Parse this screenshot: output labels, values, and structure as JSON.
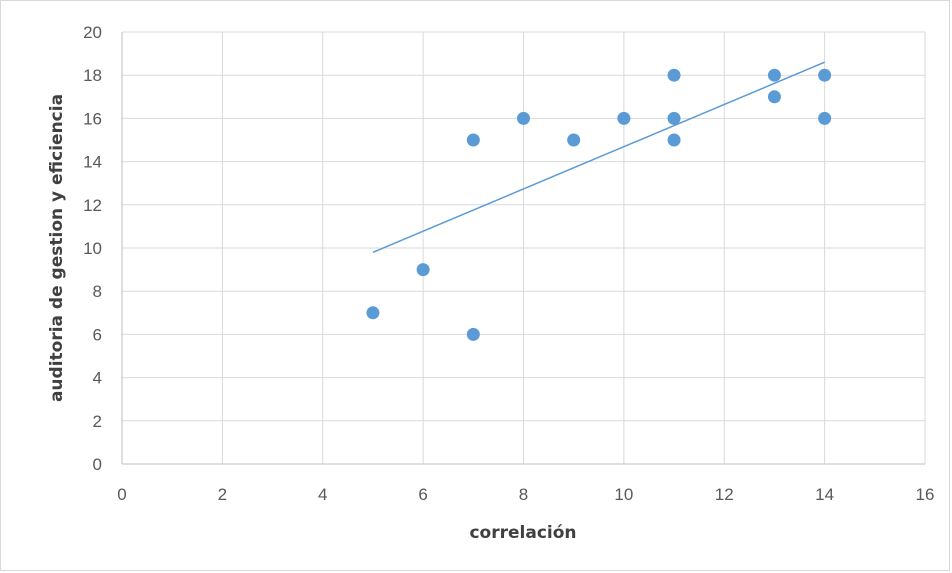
{
  "chart_data": {
    "type": "scatter",
    "title": "",
    "xlabel": "correlación",
    "ylabel": "auditoria de gestion y eficiencia",
    "xlim": [
      0,
      16
    ],
    "ylim": [
      0,
      20
    ],
    "x_ticks": [
      0,
      2,
      4,
      6,
      8,
      10,
      12,
      14,
      16
    ],
    "y_ticks": [
      0,
      2,
      4,
      6,
      8,
      10,
      12,
      14,
      16,
      18,
      20
    ],
    "grid": true,
    "legend": "none",
    "series": [
      {
        "points": [
          [
            5,
            7
          ],
          [
            6,
            9
          ],
          [
            7,
            15
          ],
          [
            7,
            6
          ],
          [
            8,
            16
          ],
          [
            9,
            15
          ],
          [
            10,
            16
          ],
          [
            11,
            18
          ],
          [
            11,
            16
          ],
          [
            11,
            15
          ],
          [
            13,
            18
          ],
          [
            13,
            17
          ],
          [
            14,
            18
          ],
          [
            14,
            16
          ]
        ],
        "color": "#5b9bd5"
      }
    ],
    "trendline": {
      "type": "linear",
      "x_range": [
        5,
        14
      ],
      "y_range": [
        9.8,
        18.6
      ],
      "color": "#5b9bd5"
    }
  }
}
